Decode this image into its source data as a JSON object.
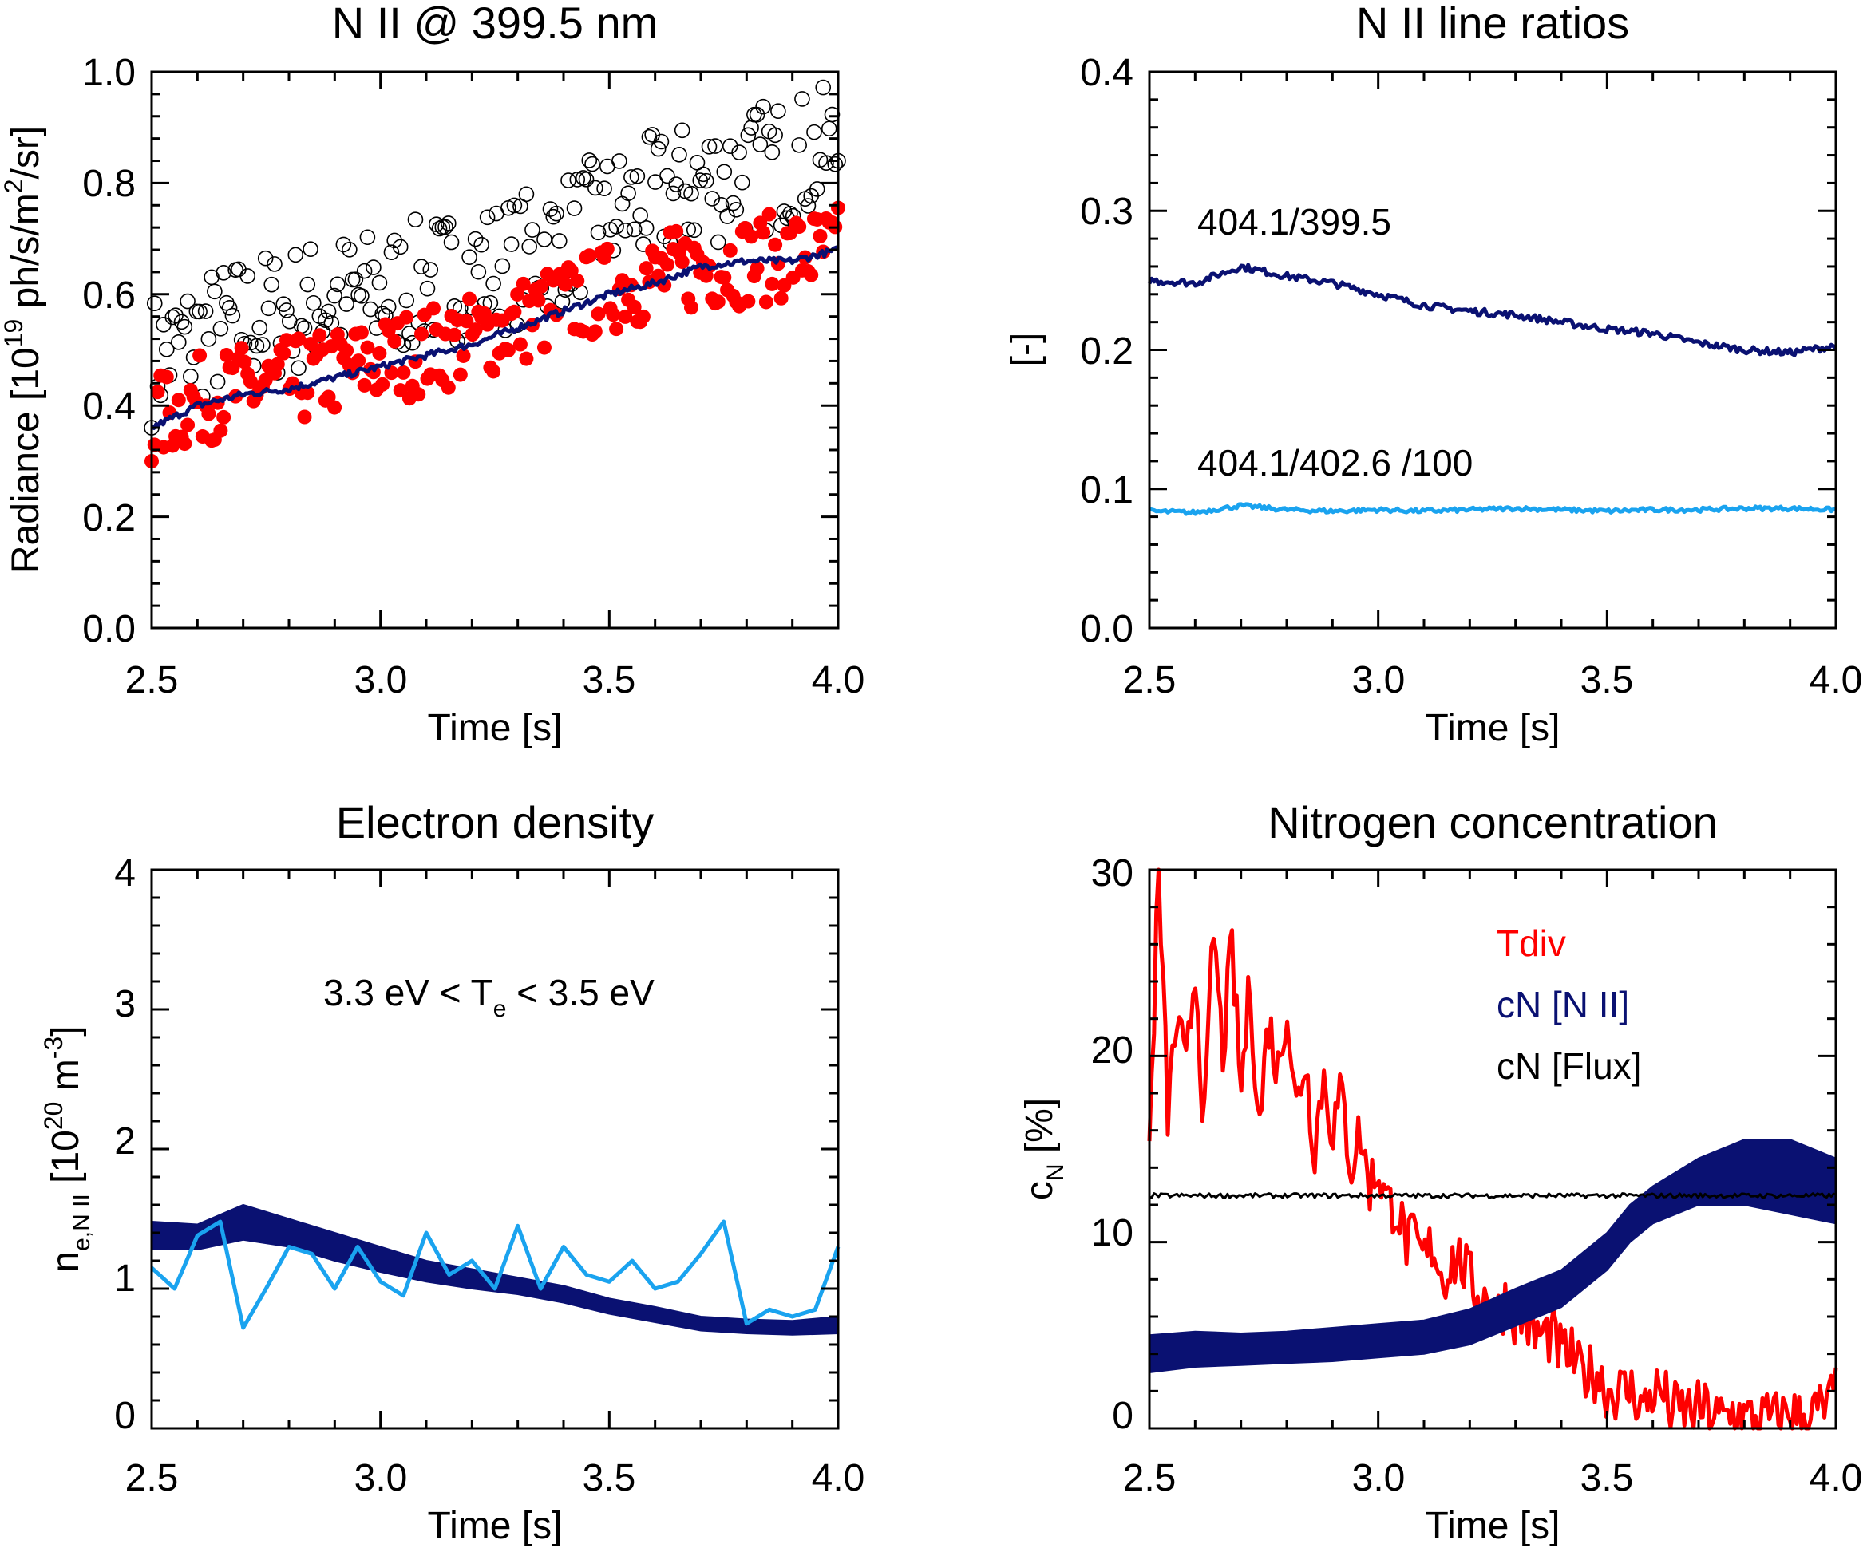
{
  "chart_data": [
    {
      "type": "scatter",
      "title": "N II @ 399.5 nm",
      "xlabel": "Time [s]",
      "ylabel": {
        "main": "Radiance [10",
        "sup": "19",
        "rest": " ph/s/m",
        "sup2": "2",
        "end": "/sr]"
      },
      "xlim": [
        2.5,
        4.0
      ],
      "ylim": [
        0.0,
        1.0
      ],
      "xticks": [
        "2.5",
        "3.0",
        "3.5",
        "4.0"
      ],
      "yticks": [
        "0.0",
        "0.2",
        "0.4",
        "0.6",
        "0.8",
        "1.0"
      ],
      "grid": false,
      "series": [
        {
          "kind": "open-circles",
          "color": "#000000",
          "x": [
            2.5,
            2.6,
            2.7,
            2.8,
            2.9,
            3.0,
            3.1,
            3.2,
            3.3,
            3.4,
            3.5,
            3.6,
            3.7,
            3.8,
            3.9,
            4.0
          ],
          "y": [
            0.48,
            0.52,
            0.55,
            0.57,
            0.59,
            0.6,
            0.62,
            0.64,
            0.66,
            0.7,
            0.74,
            0.77,
            0.8,
            0.82,
            0.84,
            0.86
          ],
          "spread": 0.12
        },
        {
          "kind": "filled-circles",
          "color": "#ff0000",
          "x": [
            2.5,
            2.6,
            2.7,
            2.8,
            2.9,
            3.0,
            3.1,
            3.2,
            3.3,
            3.4,
            3.5,
            3.6,
            3.7,
            3.8,
            3.9,
            4.0
          ],
          "y": [
            0.37,
            0.41,
            0.43,
            0.44,
            0.46,
            0.48,
            0.5,
            0.52,
            0.55,
            0.58,
            0.61,
            0.63,
            0.65,
            0.66,
            0.67,
            0.68
          ],
          "spread": 0.1
        },
        {
          "kind": "line",
          "color": "#0a1172",
          "x": [
            2.5,
            2.6,
            2.7,
            2.8,
            2.9,
            3.0,
            3.1,
            3.2,
            3.3,
            3.4,
            3.5,
            3.6,
            3.7,
            3.8,
            3.9,
            4.0
          ],
          "y": [
            0.36,
            0.4,
            0.42,
            0.43,
            0.45,
            0.47,
            0.49,
            0.51,
            0.54,
            0.57,
            0.6,
            0.62,
            0.65,
            0.66,
            0.66,
            0.68
          ]
        }
      ]
    },
    {
      "type": "line",
      "title": "N II line ratios",
      "xlabel": "Time [s]",
      "ylabel": "[-]",
      "xlim": [
        2.5,
        4.0
      ],
      "ylim": [
        0.0,
        0.4
      ],
      "xticks": [
        "2.5",
        "3.0",
        "3.5",
        "4.0"
      ],
      "yticks": [
        "0.0",
        "0.1",
        "0.2",
        "0.3",
        "0.4"
      ],
      "grid": false,
      "series": [
        {
          "name": "404.1/399.5",
          "color": "#0a1172",
          "x": [
            2.5,
            2.6,
            2.7,
            2.8,
            2.9,
            3.0,
            3.1,
            3.2,
            3.3,
            3.4,
            3.5,
            3.6,
            3.7,
            3.8,
            3.9,
            4.0
          ],
          "y": [
            0.25,
            0.248,
            0.26,
            0.253,
            0.248,
            0.24,
            0.232,
            0.228,
            0.225,
            0.22,
            0.215,
            0.212,
            0.205,
            0.2,
            0.198,
            0.203
          ]
        },
        {
          "name": "404.1/402.6 /100",
          "color": "#1aa3ef",
          "x": [
            2.5,
            2.6,
            2.7,
            2.8,
            2.9,
            3.0,
            3.1,
            3.2,
            3.3,
            3.4,
            3.5,
            3.6,
            3.7,
            3.8,
            3.9,
            4.0
          ],
          "y": [
            0.084,
            0.083,
            0.088,
            0.085,
            0.084,
            0.085,
            0.084,
            0.085,
            0.086,
            0.085,
            0.084,
            0.085,
            0.085,
            0.086,
            0.086,
            0.085
          ]
        }
      ]
    },
    {
      "type": "line",
      "title": "Electron density",
      "xlabel": "Time [s]",
      "ylabel": {
        "a": "n",
        "asub": "e,N II",
        "b": " [10",
        "bsup": "20",
        "c": " m",
        "csup": "-3",
        "d": "]"
      },
      "annotation": {
        "a": "3.3 eV < T",
        "sub": "e",
        "b": " < 3.5 eV"
      },
      "xlim": [
        2.5,
        4.0
      ],
      "ylim": [
        0,
        4
      ],
      "xticks": [
        "2.5",
        "3.0",
        "3.5",
        "4.0"
      ],
      "yticks": [
        "0",
        "1",
        "2",
        "3",
        "4"
      ],
      "grid": false,
      "series": [
        {
          "kind": "band",
          "color": "#0a1172",
          "x": [
            2.5,
            2.6,
            2.7,
            2.8,
            2.9,
            3.0,
            3.1,
            3.2,
            3.3,
            3.4,
            3.5,
            3.6,
            3.7,
            3.8,
            3.9,
            4.0
          ],
          "low": [
            1.28,
            1.28,
            1.35,
            1.3,
            1.2,
            1.12,
            1.05,
            1.0,
            0.96,
            0.9,
            0.82,
            0.76,
            0.7,
            0.68,
            0.67,
            0.68
          ],
          "high": [
            1.48,
            1.46,
            1.6,
            1.5,
            1.4,
            1.3,
            1.2,
            1.14,
            1.08,
            1.02,
            0.93,
            0.87,
            0.8,
            0.78,
            0.77,
            0.8
          ]
        },
        {
          "kind": "line",
          "color": "#1aa3ef",
          "x": [
            2.5,
            2.55,
            2.6,
            2.65,
            2.7,
            2.75,
            2.8,
            2.85,
            2.9,
            2.95,
            3.0,
            3.05,
            3.1,
            3.15,
            3.2,
            3.25,
            3.3,
            3.35,
            3.4,
            3.45,
            3.5,
            3.55,
            3.6,
            3.65,
            3.7,
            3.75,
            3.8,
            3.85,
            3.9,
            3.95,
            4.0
          ],
          "y": [
            1.15,
            1.0,
            1.38,
            1.48,
            0.72,
            1.0,
            1.3,
            1.25,
            1.0,
            1.3,
            1.05,
            0.95,
            1.4,
            1.1,
            1.2,
            1.0,
            1.45,
            1.0,
            1.3,
            1.1,
            1.05,
            1.2,
            1.0,
            1.05,
            1.25,
            1.48,
            0.75,
            0.85,
            0.8,
            0.85,
            1.3
          ]
        }
      ]
    },
    {
      "type": "line",
      "title": "Nitrogen concentration",
      "xlabel": "Time [s]",
      "ylabel": {
        "a": "c",
        "asub": "N",
        "b": " [%]"
      },
      "xlim": [
        2.5,
        4.0
      ],
      "ylim": [
        0,
        30
      ],
      "xticks": [
        "2.5",
        "3.0",
        "3.5",
        "4.0"
      ],
      "yticks": [
        "0",
        "10",
        "20",
        "30"
      ],
      "grid": false,
      "legend_position": "top-right",
      "series": [
        {
          "name": "Tdiv",
          "color": "#ff0000",
          "x": [
            2.5,
            2.52,
            2.54,
            2.56,
            2.58,
            2.6,
            2.62,
            2.64,
            2.66,
            2.68,
            2.7,
            2.72,
            2.74,
            2.76,
            2.78,
            2.8,
            2.82,
            2.84,
            2.86,
            2.88,
            2.9,
            2.92,
            2.94,
            2.96,
            2.98,
            3.0,
            3.02,
            3.04,
            3.06,
            3.08,
            3.1,
            3.12,
            3.14,
            3.16,
            3.18,
            3.2,
            3.22,
            3.24,
            3.26,
            3.28,
            3.3,
            3.32,
            3.34,
            3.36,
            3.38,
            3.4,
            3.42,
            3.44,
            3.46,
            3.48,
            3.5,
            3.52,
            3.54,
            3.56,
            3.58,
            3.6,
            3.62,
            3.64,
            3.66,
            3.68,
            3.7,
            3.72,
            3.74,
            3.76,
            3.78,
            3.8,
            3.82,
            3.84,
            3.86,
            3.88,
            3.9,
            3.92,
            3.94,
            3.96,
            3.98,
            4.0
          ],
          "y": [
            15,
            30,
            17,
            22,
            19,
            25,
            16,
            27,
            20,
            26,
            18,
            24,
            16,
            22,
            19,
            23,
            17,
            20,
            15,
            19,
            16,
            18,
            14,
            16,
            13,
            14,
            12,
            12,
            10,
            10,
            9,
            10,
            8,
            9,
            9,
            8,
            7,
            7,
            6,
            7,
            6,
            6,
            5,
            5,
            5,
            4,
            4,
            3,
            3,
            3,
            2,
            2,
            2,
            2,
            1,
            2,
            2,
            1,
            1,
            1,
            1,
            1,
            0.5,
            0.5,
            1,
            0.5,
            0.5,
            0.5,
            0.5,
            0.5,
            1,
            0.5,
            0.5,
            1,
            1,
            2
          ]
        },
        {
          "name": "cN [N II]",
          "color": "#0a1172",
          "kind": "band",
          "x": [
            2.5,
            2.6,
            2.7,
            2.8,
            2.9,
            3.0,
            3.1,
            3.2,
            3.3,
            3.4,
            3.5,
            3.55,
            3.6,
            3.7,
            3.8,
            3.9,
            4.0
          ],
          "low": [
            3,
            3.3,
            3.4,
            3.5,
            3.6,
            3.8,
            4,
            4.5,
            5.5,
            6.5,
            8.5,
            10,
            11,
            12,
            12,
            11.5,
            11
          ],
          "high": [
            5,
            5.2,
            5.1,
            5.2,
            5.4,
            5.6,
            5.8,
            6.4,
            7.5,
            8.5,
            10.5,
            12,
            13,
            14.5,
            15.5,
            15.5,
            14.5
          ]
        },
        {
          "name": "cN [Flux]",
          "color": "#000000",
          "x": [
            2.5,
            2.6,
            2.7,
            2.8,
            2.9,
            3.0,
            3.1,
            3.2,
            3.3,
            3.4,
            3.5,
            3.6,
            3.7,
            3.8,
            3.9,
            4.0
          ],
          "y": [
            12.5,
            12.5,
            12.5,
            12.5,
            12.5,
            12.5,
            12.5,
            12.5,
            12.5,
            12.5,
            12.5,
            12.5,
            12.5,
            12.5,
            12.5,
            12.5
          ]
        }
      ]
    }
  ]
}
